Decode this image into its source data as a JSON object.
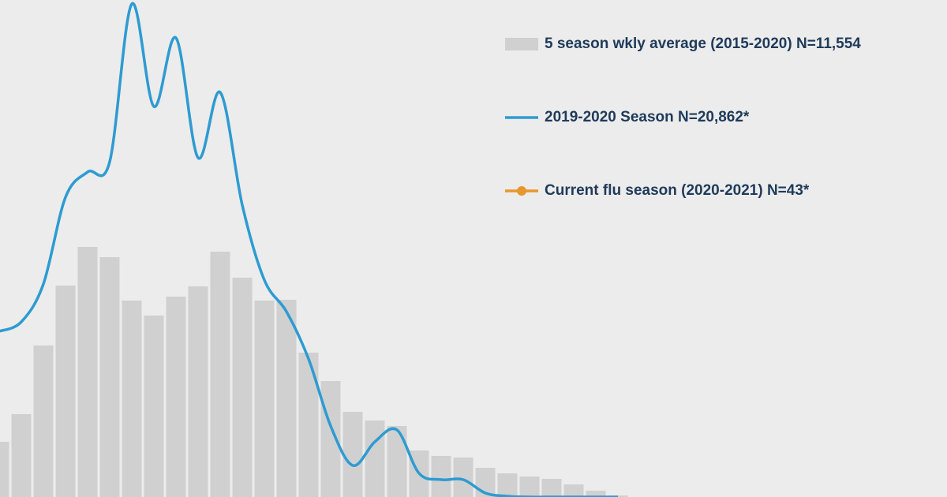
{
  "chart_data": {
    "type": "bar_line",
    "categories": [
      null,
      null,
      null,
      null,
      null,
      null,
      null,
      null,
      null,
      null,
      null,
      null,
      null,
      null,
      null,
      null,
      null,
      null,
      null,
      null,
      null,
      null,
      null,
      null,
      null,
      null,
      null,
      null,
      null
    ],
    "series": [
      {
        "name": "5 season wkly average (2015-2020) N=11,554",
        "color": "#d0d0d0",
        "kind": "bar",
        "values": [
          70,
          105,
          192,
          268,
          317,
          304,
          249,
          230,
          254,
          267,
          311,
          278,
          249,
          250,
          183,
          147,
          108,
          97,
          90,
          59,
          52,
          50,
          37,
          30,
          26,
          23,
          16,
          8,
          2
        ]
      },
      {
        "name": "2019-2020 Season N=20,862*",
        "color": "#2e9bd1",
        "kind": "line",
        "values": [
          210,
          222,
          270,
          380,
          412,
          425,
          625,
          495,
          582,
          430,
          513,
          370,
          275,
          235,
          175,
          90,
          40,
          70,
          85,
          30,
          22,
          22,
          5,
          1,
          0,
          0,
          0,
          0,
          0
        ]
      },
      {
        "name": "Current flu season (2020-2021) N=43*",
        "color": "#e8962e",
        "kind": "line_marker",
        "values": [
          null,
          null,
          null,
          null,
          null,
          null,
          null,
          null,
          null,
          null,
          null,
          null,
          null,
          null,
          null,
          null,
          null,
          null,
          null,
          null,
          null,
          null,
          null,
          null,
          null,
          null,
          null,
          null,
          null
        ]
      }
    ],
    "ylim": [
      0,
      630
    ]
  }
}
